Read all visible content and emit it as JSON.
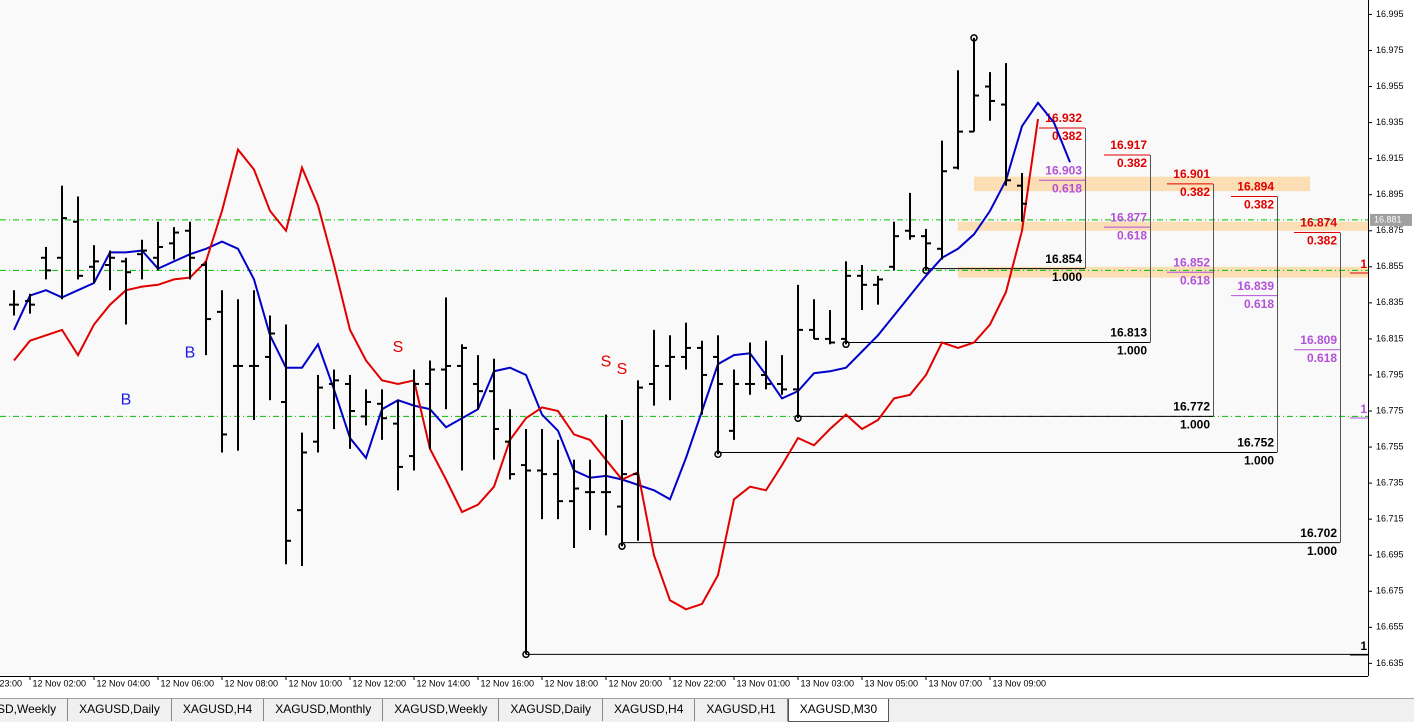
{
  "chart_data": {
    "type": "ohlc",
    "ylim": [
      16.628,
      17.003
    ],
    "yticks": [
      16.995,
      16.975,
      16.955,
      16.935,
      16.915,
      16.895,
      16.875,
      16.855,
      16.835,
      16.815,
      16.795,
      16.775,
      16.755,
      16.735,
      16.715,
      16.695,
      16.675,
      16.655,
      16.635
    ],
    "xlim": [
      -0.875,
      84.625
    ],
    "xticks": [
      {
        "value": -3,
        "label": "23:00"
      },
      {
        "value": 1,
        "label": "12 Nov 02:00"
      },
      {
        "value": 5,
        "label": "12 Nov 04:00"
      },
      {
        "value": 9,
        "label": "12 Nov 06:00"
      },
      {
        "value": 13,
        "label": "12 Nov 08:00"
      },
      {
        "value": 17,
        "label": "12 Nov 10:00"
      },
      {
        "value": 21,
        "label": "12 Nov 12:00"
      },
      {
        "value": 25,
        "label": "12 Nov 14:00"
      },
      {
        "value": 29,
        "label": "12 Nov 16:00"
      },
      {
        "value": 33,
        "label": "12 Nov 18:00"
      },
      {
        "value": 37,
        "label": "12 Nov 20:00"
      },
      {
        "value": 41,
        "label": "12 Nov 22:00"
      },
      {
        "value": 45,
        "label": "13 Nov 01:00"
      },
      {
        "value": 49,
        "label": "13 Nov 03:00"
      },
      {
        "value": 53,
        "label": "13 Nov 05:00"
      },
      {
        "value": 57,
        "label": "13 Nov 07:00"
      },
      {
        "value": 61,
        "label": "13 Nov 09:00"
      }
    ],
    "bar_color": "#000000",
    "open": [
      16.834,
      16.836,
      16.86,
      16.86,
      16.88,
      16.855,
      16.856,
      16.858,
      16.862,
      16.86,
      16.868,
      16.875,
      16.856,
      16.83,
      16.8,
      16.8,
      16.805,
      16.78,
      16.72,
      16.758,
      16.79,
      16.79,
      16.772,
      16.779,
      16.768,
      16.75,
      16.79,
      16.798,
      16.8,
      16.79,
      16.786,
      16.758,
      16.745,
      16.742,
      16.74,
      16.725,
      16.73,
      16.73,
      16.722,
      16.74,
      16.79,
      16.8,
      16.805,
      16.81,
      16.805,
      16.764,
      16.79,
      16.795,
      16.79,
      16.787,
      16.82,
      16.815,
      16.815,
      16.85,
      16.845,
      16.855,
      16.875,
      16.872,
      16.865,
      16.91,
      16.93,
      16.955,
      16.945,
      16.9,
      null,
      null,
      null
    ],
    "high": [
      16.842,
      16.84,
      16.866,
      16.9,
      16.894,
      16.867,
      16.864,
      16.86,
      16.87,
      16.88,
      16.877,
      16.88,
      16.858,
      16.842,
      16.837,
      16.842,
      16.828,
      16.823,
      16.763,
      16.795,
      16.798,
      16.795,
      16.787,
      16.787,
      16.781,
      16.798,
      16.803,
      16.838,
      16.812,
      16.806,
      16.804,
      16.776,
      16.765,
      16.765,
      16.759,
      16.748,
      16.748,
      16.773,
      16.77,
      16.792,
      16.82,
      16.817,
      16.824,
      16.814,
      16.817,
      16.798,
      16.813,
      16.814,
      16.806,
      16.845,
      16.837,
      16.831,
      16.858,
      16.856,
      16.85,
      16.88,
      16.896,
      16.876,
      16.925,
      16.964,
      16.982,
      16.963,
      16.968,
      16.907,
      null,
      null,
      null
    ],
    "low": [
      16.828,
      16.829,
      16.848,
      16.837,
      16.848,
      16.846,
      16.842,
      16.823,
      16.848,
      16.853,
      16.859,
      16.848,
      16.806,
      16.752,
      16.753,
      16.77,
      16.781,
      16.69,
      16.689,
      16.752,
      16.765,
      16.754,
      16.767,
      16.759,
      16.731,
      16.742,
      16.754,
      16.776,
      16.742,
      16.776,
      16.748,
      16.737,
      16.64,
      16.715,
      16.715,
      16.699,
      16.709,
      16.706,
      16.7,
      16.703,
      16.778,
      16.781,
      16.798,
      16.773,
      16.751,
      16.759,
      16.784,
      16.787,
      16.784,
      16.771,
      16.815,
      16.812,
      16.812,
      16.831,
      16.834,
      16.853,
      16.87,
      16.853,
      16.859,
      16.909,
      16.93,
      16.936,
      16.9,
      16.88,
      null,
      null,
      null
    ],
    "close": [
      16.834,
      16.834,
      16.853,
      16.882,
      16.85,
      16.858,
      16.86,
      16.852,
      16.864,
      16.866,
      16.874,
      16.86,
      16.826,
      16.762,
      16.8,
      16.8,
      16.818,
      16.703,
      16.752,
      16.788,
      16.792,
      16.775,
      16.78,
      16.771,
      16.744,
      16.79,
      16.798,
      16.8,
      16.81,
      16.786,
      16.765,
      16.74,
      16.742,
      16.74,
      16.725,
      16.732,
      16.73,
      16.73,
      16.74,
      16.788,
      16.8,
      16.805,
      16.81,
      16.795,
      16.79,
      16.79,
      16.79,
      16.79,
      16.787,
      16.82,
      16.815,
      16.813,
      16.85,
      16.845,
      16.848,
      16.872,
      16.872,
      16.868,
      16.908,
      16.93,
      16.95,
      16.947,
      16.903,
      16.89,
      null,
      null,
      null
    ],
    "series": [
      {
        "color": "#0000c8",
        "values": [
          16.82,
          16.839,
          16.842,
          16.838,
          16.842,
          16.846,
          16.863,
          16.863,
          16.864,
          16.854,
          16.858,
          16.862,
          16.865,
          16.869,
          16.865,
          16.848,
          16.817,
          16.799,
          16.799,
          16.812,
          16.787,
          16.76,
          16.749,
          16.776,
          16.781,
          16.778,
          16.776,
          16.766,
          16.771,
          16.776,
          16.797,
          16.799,
          16.795,
          16.773,
          16.764,
          16.742,
          16.738,
          16.739,
          16.737,
          16.734,
          16.731,
          16.726,
          16.749,
          16.775,
          16.801,
          16.806,
          16.807,
          16.795,
          16.782,
          16.786,
          16.796,
          16.797,
          16.799,
          16.808,
          16.817,
          16.828,
          16.839,
          16.85,
          16.86,
          16.865,
          16.873,
          16.886,
          16.903,
          16.933,
          16.946,
          16.935,
          16.913
        ]
      },
      {
        "color": "#e00000",
        "values": [
          16.803,
          16.814,
          16.817,
          16.82,
          16.806,
          16.823,
          16.834,
          16.842,
          16.844,
          16.845,
          16.848,
          16.849,
          16.858,
          16.886,
          16.92,
          16.909,
          16.886,
          16.875,
          16.91,
          16.889,
          16.856,
          16.82,
          16.803,
          16.792,
          16.79,
          16.792,
          16.754,
          16.737,
          16.719,
          16.723,
          16.733,
          16.759,
          16.771,
          16.777,
          16.775,
          16.762,
          16.759,
          16.748,
          16.737,
          16.741,
          16.695,
          16.67,
          16.665,
          16.668,
          16.684,
          16.726,
          16.733,
          16.731,
          16.745,
          16.76,
          16.756,
          16.765,
          16.773,
          16.765,
          16.77,
          16.782,
          16.784,
          16.795,
          16.813,
          16.81,
          16.813,
          16.823,
          16.841,
          16.875,
          16.937,
          null,
          null
        ]
      }
    ],
    "signals": [
      {
        "text": "B",
        "x": 7,
        "y": 16.781,
        "color": "#1a1ae0"
      },
      {
        "text": "B",
        "x": 11,
        "y": 16.807,
        "color": "#1a1ae0"
      },
      {
        "text": "S",
        "x": 24,
        "y": 16.81,
        "color": "#e00000"
      },
      {
        "text": "S",
        "x": 37,
        "y": 16.802,
        "color": "#e00000"
      },
      {
        "text": "S",
        "x": 38,
        "y": 16.798,
        "color": "#e00000"
      }
    ],
    "hlines": [
      16.881,
      16.853,
      16.772
    ],
    "hline_color": "#00c000",
    "last_price": 16.881,
    "zones": [
      [
        16.897,
        16.905
      ],
      [
        16.875,
        16.88
      ],
      [
        16.849,
        16.855
      ]
    ],
    "zone_color": "#fcd9a8",
    "fib_colors": [
      "#e00000",
      "#b450d8",
      "#000000"
    ],
    "fibs": [
      {
        "levels": [
          16.932,
          16.903,
          16.854
        ],
        "ratios": [
          0.382,
          0.618,
          {
            "value": 1,
            "label": "1.000"
          }
        ]
      },
      {
        "levels": [
          16.917,
          16.877,
          16.813
        ],
        "ratios": [
          0.382,
          0.618,
          {
            "value": 1,
            "label": "1.000"
          }
        ]
      },
      {
        "levels": [
          16.901,
          16.852,
          16.772
        ],
        "ratios": [
          0.382,
          0.618,
          {
            "value": 1,
            "label": "1.000"
          }
        ]
      },
      {
        "levels": [
          16.894,
          16.839,
          16.752
        ],
        "ratios": [
          0.382,
          0.618,
          {
            "value": 1,
            "label": "1.000"
          }
        ]
      },
      {
        "levels": [
          16.874,
          16.809,
          16.702
        ],
        "ratios": [
          0.382,
          0.618,
          {
            "value": 1,
            "label": "1.000"
          }
        ]
      }
    ],
    "edge_labels": [
      "1",
      "1",
      "1"
    ]
  },
  "tabs": [
    "SD,Weekly",
    "XAGUSD,Daily",
    "XAGUSD,H4",
    "XAGUSD,Monthly",
    "XAGUSD,Weekly",
    "XAGUSD,Daily",
    "XAGUSD,H4",
    "XAGUSD,H1",
    "XAGUSD,M30"
  ]
}
